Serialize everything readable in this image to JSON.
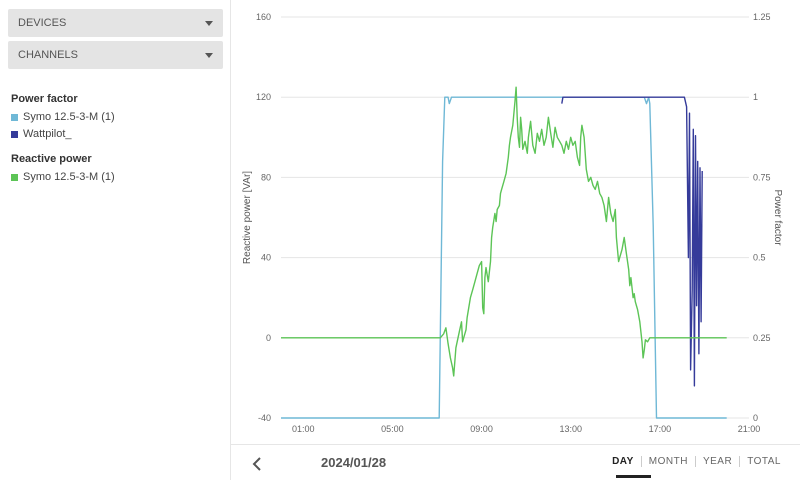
{
  "sidebar": {
    "devices_label": "DEVICES",
    "channels_label": "CHANNELS",
    "groups": [
      {
        "title": "Power factor",
        "items": [
          {
            "label": "Symo 12.5-3-M (1)",
            "color": "#6fb8d6"
          },
          {
            "label": "Wattpilot_",
            "color": "#353b9a"
          }
        ]
      },
      {
        "title": "Reactive power",
        "items": [
          {
            "label": "Symo 12.5-3-M (1)",
            "color": "#5cc456"
          }
        ]
      }
    ]
  },
  "footer": {
    "date": "2024/01/28",
    "periods": [
      "DAY",
      "MONTH",
      "YEAR",
      "TOTAL"
    ],
    "active_period": "DAY"
  },
  "chart_data": {
    "type": "line",
    "xlabel": "",
    "ylabel": "Reactive power [VAr]",
    "y2label": "Power factor",
    "x_ticks": [
      "01:00",
      "05:00",
      "09:00",
      "13:00",
      "17:00",
      "21:00"
    ],
    "xlim_hours": [
      0,
      21
    ],
    "ylim": [
      -40,
      160
    ],
    "y_ticks": [
      -40,
      0,
      40,
      80,
      120,
      160
    ],
    "y2lim": [
      0,
      1.25
    ],
    "y2_ticks": [
      "0",
      "0.25",
      "0.5",
      "0.75",
      "1",
      "1.25"
    ],
    "grid": true,
    "series": [
      {
        "name": "Symo 12.5-3-M (1)",
        "axis": "right",
        "color": "#6fb8d6",
        "points": [
          [
            0,
            0
          ],
          [
            7.1,
            0
          ],
          [
            7.25,
            0.8
          ],
          [
            7.35,
            1
          ],
          [
            7.5,
            1
          ],
          [
            7.55,
            0.98
          ],
          [
            7.65,
            1
          ],
          [
            16.3,
            1
          ],
          [
            16.4,
            0.98
          ],
          [
            16.5,
            1
          ],
          [
            16.55,
            0.98
          ],
          [
            16.7,
            0.6
          ],
          [
            16.85,
            0
          ],
          [
            20,
            0
          ]
        ]
      },
      {
        "name": "Wattpilot_",
        "axis": "right",
        "color": "#353b9a",
        "segments": [
          [
            [
              12.6,
              0.98
            ],
            [
              12.65,
              1
            ],
            [
              18.1,
              1
            ],
            [
              18.2,
              0.97
            ],
            [
              18.28,
              0.5
            ],
            [
              18.33,
              0.95
            ],
            [
              18.38,
              0.15
            ],
            [
              18.45,
              0.4
            ],
            [
              18.5,
              0.9
            ],
            [
              18.55,
              0.1
            ],
            [
              18.6,
              0.88
            ],
            [
              18.65,
              0.35
            ],
            [
              18.7,
              0.8
            ],
            [
              18.75,
              0.2
            ],
            [
              18.8,
              0.78
            ],
            [
              18.85,
              0.3
            ],
            [
              18.9,
              0.77
            ]
          ]
        ]
      },
      {
        "name": "Symo 12.5-3-M (1)",
        "axis": "left",
        "color": "#5cc456",
        "points": [
          [
            0,
            0
          ],
          [
            7.15,
            0
          ],
          [
            7.3,
            2
          ],
          [
            7.4,
            5
          ],
          [
            7.5,
            -3
          ],
          [
            7.6,
            -10
          ],
          [
            7.7,
            -15
          ],
          [
            7.75,
            -19
          ],
          [
            7.85,
            -5
          ],
          [
            8.0,
            3
          ],
          [
            8.1,
            8
          ],
          [
            8.15,
            -2
          ],
          [
            8.2,
            0
          ],
          [
            8.3,
            4
          ],
          [
            8.35,
            10
          ],
          [
            8.5,
            20
          ],
          [
            8.6,
            24
          ],
          [
            8.7,
            28
          ],
          [
            8.8,
            32
          ],
          [
            8.9,
            36
          ],
          [
            9.0,
            38
          ],
          [
            9.05,
            15
          ],
          [
            9.1,
            12
          ],
          [
            9.15,
            30
          ],
          [
            9.2,
            35
          ],
          [
            9.3,
            28
          ],
          [
            9.4,
            38
          ],
          [
            9.45,
            50
          ],
          [
            9.5,
            55
          ],
          [
            9.6,
            62
          ],
          [
            9.65,
            58
          ],
          [
            9.7,
            64
          ],
          [
            9.8,
            66
          ],
          [
            9.85,
            72
          ],
          [
            9.9,
            74
          ],
          [
            10.0,
            78
          ],
          [
            10.1,
            82
          ],
          [
            10.2,
            90
          ],
          [
            10.25,
            96
          ],
          [
            10.3,
            100
          ],
          [
            10.4,
            106
          ],
          [
            10.45,
            112
          ],
          [
            10.5,
            118
          ],
          [
            10.55,
            125
          ],
          [
            10.6,
            110
          ],
          [
            10.65,
            100
          ],
          [
            10.7,
            95
          ],
          [
            10.75,
            110
          ],
          [
            10.8,
            104
          ],
          [
            10.85,
            94
          ],
          [
            10.95,
            98
          ],
          [
            11.05,
            92
          ],
          [
            11.1,
            100
          ],
          [
            11.2,
            108
          ],
          [
            11.3,
            96
          ],
          [
            11.4,
            92
          ],
          [
            11.5,
            102
          ],
          [
            11.6,
            98
          ],
          [
            11.7,
            104
          ],
          [
            11.8,
            96
          ],
          [
            11.9,
            100
          ],
          [
            12.0,
            110
          ],
          [
            12.1,
            102
          ],
          [
            12.2,
            95
          ],
          [
            12.3,
            105
          ],
          [
            12.4,
            100
          ],
          [
            12.5,
            98
          ],
          [
            12.6,
            96
          ],
          [
            12.7,
            92
          ],
          [
            12.8,
            98
          ],
          [
            12.9,
            94
          ],
          [
            13.0,
            100
          ],
          [
            13.1,
            96
          ],
          [
            13.2,
            98
          ],
          [
            13.3,
            90
          ],
          [
            13.4,
            86
          ],
          [
            13.45,
            100
          ],
          [
            13.5,
            106
          ],
          [
            13.6,
            100
          ],
          [
            13.7,
            84
          ],
          [
            13.8,
            78
          ],
          [
            13.9,
            80
          ],
          [
            14.0,
            76
          ],
          [
            14.1,
            74
          ],
          [
            14.2,
            78
          ],
          [
            14.3,
            72
          ],
          [
            14.4,
            70
          ],
          [
            14.5,
            66
          ],
          [
            14.6,
            58
          ],
          [
            14.7,
            70
          ],
          [
            14.75,
            66
          ],
          [
            14.8,
            62
          ],
          [
            14.9,
            58
          ],
          [
            15.0,
            64
          ],
          [
            15.05,
            50
          ],
          [
            15.1,
            44
          ],
          [
            15.15,
            38
          ],
          [
            15.2,
            40
          ],
          [
            15.3,
            44
          ],
          [
            15.4,
            50
          ],
          [
            15.5,
            42
          ],
          [
            15.6,
            34
          ],
          [
            15.65,
            26
          ],
          [
            15.7,
            30
          ],
          [
            15.8,
            20
          ],
          [
            15.85,
            22
          ],
          [
            15.9,
            18
          ],
          [
            16.0,
            14
          ],
          [
            16.1,
            8
          ],
          [
            16.2,
            -2
          ],
          [
            16.25,
            -10
          ],
          [
            16.3,
            -6
          ],
          [
            16.35,
            -1
          ],
          [
            16.45,
            -2
          ],
          [
            16.55,
            0
          ],
          [
            16.7,
            0
          ],
          [
            18.05,
            0
          ],
          [
            20.0,
            0
          ]
        ]
      }
    ]
  }
}
